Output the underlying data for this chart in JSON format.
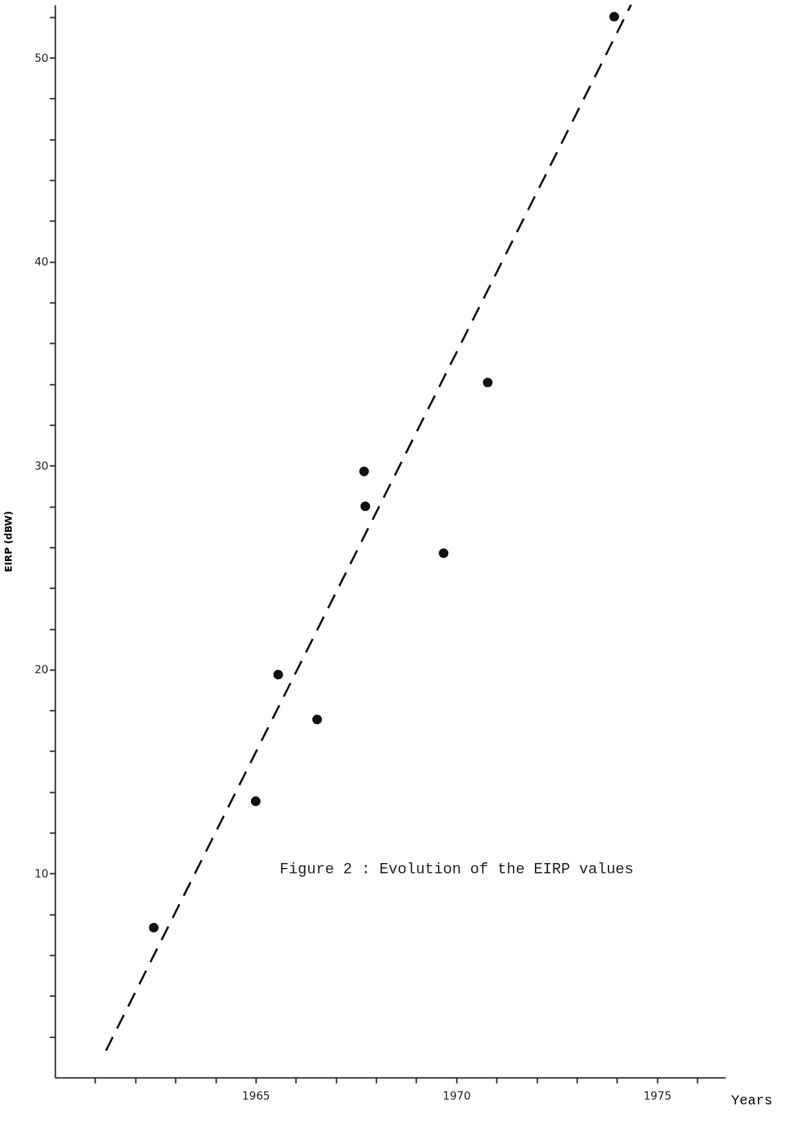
{
  "chart_data": {
    "type": "scatter",
    "xlabel": "Years",
    "ylabel": "EIRP (dBW)",
    "annotations": [
      "Figure 2 : Evolution of the EIRP values"
    ],
    "series": [
      {
        "color": "#111111",
        "marker": "circle",
        "x": [
          1962.46,
          1965.0,
          1965.56,
          1966.53,
          1967.7,
          1967.73,
          1969.68,
          1970.78,
          1973.93
        ],
        "values": [
          7.35,
          13.55,
          19.76,
          17.56,
          29.72,
          28.01,
          25.71,
          34.08,
          52.02
        ]
      },
      {
        "type": "line",
        "color": "#111111",
        "line_style": "dashed",
        "marker": "none",
        "x": [
          1961.27,
          1974.35
        ],
        "values": [
          1.32,
          52.6
        ]
      }
    ],
    "xlim": [
      1960,
      1976.7
    ],
    "ylim": [
      0,
      52.6
    ],
    "xticks": [
      {
        "value": 1961,
        "label": null
      },
      {
        "value": 1962,
        "label": null
      },
      {
        "value": 1963,
        "label": null
      },
      {
        "value": 1964,
        "label": null
      },
      1965,
      {
        "value": 1966,
        "label": null
      },
      {
        "value": 1967,
        "label": null
      },
      {
        "value": 1968,
        "label": null
      },
      {
        "value": 1969,
        "label": null
      },
      1970,
      {
        "value": 1971,
        "label": null
      },
      {
        "value": 1972,
        "label": null
      },
      {
        "value": 1973,
        "label": null
      },
      {
        "value": 1974,
        "label": null
      },
      1975,
      {
        "value": 1976,
        "label": null
      }
    ],
    "yticks": [
      {
        "value": 2,
        "label": null
      },
      {
        "value": 4,
        "label": null
      },
      {
        "value": 6,
        "label": null
      },
      {
        "value": 8,
        "label": null
      },
      10,
      {
        "value": 12,
        "label": null
      },
      {
        "value": 14,
        "label": null
      },
      {
        "value": 16,
        "label": null
      },
      {
        "value": 18,
        "label": null
      },
      20,
      {
        "value": 22,
        "label": null
      },
      {
        "value": 24,
        "label": null
      },
      {
        "value": 26,
        "label": null
      },
      {
        "value": 28,
        "label": null
      },
      30,
      {
        "value": 32,
        "label": null
      },
      {
        "value": 34,
        "label": null
      },
      {
        "value": 36,
        "label": null
      },
      {
        "value": 38,
        "label": null
      },
      40,
      {
        "value": 42,
        "label": null
      },
      {
        "value": 44,
        "label": null
      },
      {
        "value": 46,
        "label": null
      },
      {
        "value": 48,
        "label": null
      },
      50,
      {
        "value": 52,
        "label": null
      }
    ],
    "grid": false
  }
}
